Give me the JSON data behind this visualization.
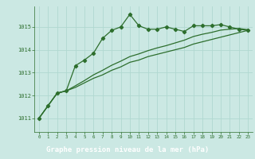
{
  "title": "Graphe pression niveau de la mer (hPa)",
  "bg_color": "#cbe8e3",
  "grid_color": "#b0d8d0",
  "line_color": "#2d6e2d",
  "label_bg_color": "#2d6e2d",
  "label_text_color": "#ffffff",
  "x_ticks": [
    0,
    1,
    2,
    3,
    4,
    5,
    6,
    7,
    8,
    9,
    10,
    11,
    12,
    13,
    14,
    15,
    16,
    17,
    18,
    19,
    20,
    21,
    22,
    23
  ],
  "y_ticks": [
    1011,
    1012,
    1013,
    1014,
    1015
  ],
  "ylim": [
    1010.4,
    1015.9
  ],
  "xlim": [
    -0.5,
    23.5
  ],
  "series1_x": [
    0,
    1,
    2,
    3,
    4,
    5,
    6,
    7,
    8,
    9,
    10,
    11,
    12,
    13,
    14,
    15,
    16,
    17,
    18,
    19,
    20,
    21,
    22,
    23
  ],
  "series1": [
    1011.0,
    1011.55,
    1012.1,
    1012.2,
    1013.3,
    1013.55,
    1013.85,
    1014.5,
    1014.85,
    1015.0,
    1015.55,
    1015.05,
    1014.9,
    1014.9,
    1015.0,
    1014.9,
    1014.8,
    1015.05,
    1015.05,
    1015.05,
    1015.1,
    1015.0,
    1014.9,
    1014.85
  ],
  "series2": [
    1011.0,
    1011.55,
    1012.1,
    1012.2,
    1012.35,
    1012.55,
    1012.75,
    1012.9,
    1013.1,
    1013.25,
    1013.45,
    1013.55,
    1013.7,
    1013.8,
    1013.9,
    1014.0,
    1014.1,
    1014.25,
    1014.35,
    1014.45,
    1014.55,
    1014.65,
    1014.75,
    1014.85
  ],
  "series3": [
    1011.0,
    1011.55,
    1012.1,
    1012.2,
    1012.42,
    1012.65,
    1012.9,
    1013.1,
    1013.32,
    1013.5,
    1013.7,
    1013.82,
    1013.96,
    1014.08,
    1014.18,
    1014.3,
    1014.42,
    1014.58,
    1014.68,
    1014.76,
    1014.86,
    1014.9,
    1014.93,
    1014.88
  ]
}
